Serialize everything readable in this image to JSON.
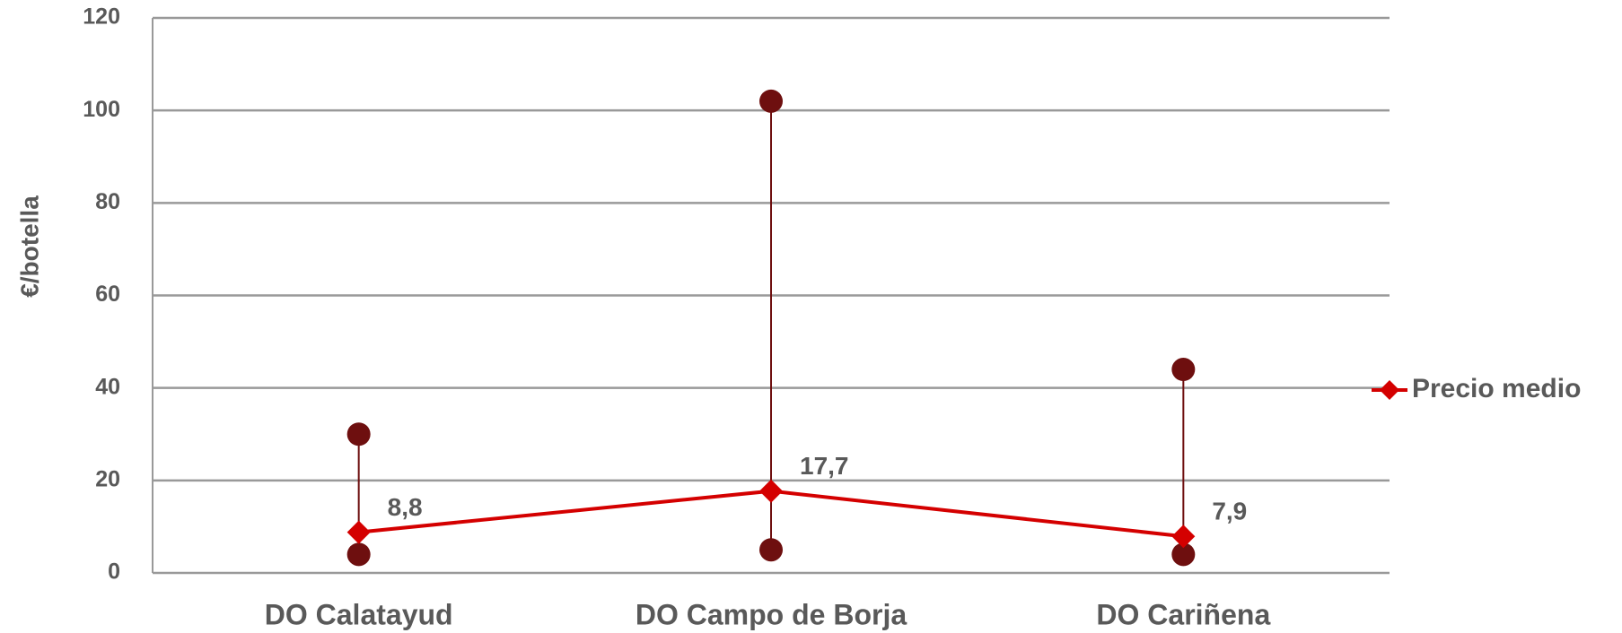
{
  "chart_data": {
    "type": "line",
    "ylabel": "€/botella",
    "categories": [
      "DO Calatayud",
      "DO Campo de Borja",
      "DO Cariñena"
    ],
    "series": [
      {
        "name": "Precio medio",
        "color": "#d40000",
        "values": [
          8.8,
          17.7,
          7.9
        ],
        "value_labels": [
          "8,8",
          "17,7",
          "7,9"
        ]
      }
    ],
    "range": {
      "color": "#6e0f0f",
      "high": [
        30,
        102,
        44
      ],
      "low": [
        4,
        5,
        4
      ]
    },
    "ylim": [
      0,
      120
    ],
    "yticks": [
      0,
      20,
      40,
      60,
      80,
      100,
      120
    ],
    "grid": true,
    "legend": "right"
  }
}
